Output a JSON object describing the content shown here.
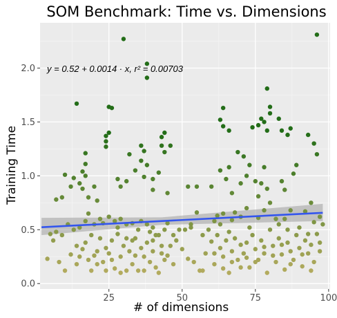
{
  "chart_data": {
    "type": "scatter",
    "title": "SOM Benchmark: Time vs. Dimensions",
    "xlabel": "# of dimensions",
    "ylabel": "Training Time",
    "xlim": [
      1.5,
      100.5
    ],
    "ylim": [
      -0.05,
      2.42
    ],
    "x_ticks": [
      25,
      50,
      75,
      100
    ],
    "y_ticks": [
      0.0,
      0.5,
      1.0,
      1.5,
      2.0
    ],
    "x_tick_labels": [
      "25",
      "50",
      "75",
      "100"
    ],
    "y_tick_labels": [
      "0.0",
      "0.5",
      "1.0",
      "1.5",
      "2.0"
    ],
    "grid": true,
    "legend": "none",
    "annotation": "y = 0.52 + 0.0014 · x,  r² = 0.00703",
    "regression": {
      "intercept": 0.52,
      "slope": 0.0014,
      "r_squared": 0.00703,
      "x_range": [
        2,
        98
      ],
      "ci_lower_start": 0.45,
      "ci_upper_start": 0.61,
      "ci_lower_end": 0.58,
      "ci_upper_end": 0.74,
      "ci_mid": 43
    },
    "colors": {
      "panel": "#ebebeb",
      "grid_major": "#ffffff",
      "point_low": "#b3ab5e",
      "point_high": "#236d18",
      "line": "#3355ee",
      "band": "#9e9e9e"
    },
    "points": [
      [
        96,
        2.31
      ],
      [
        30,
        2.27
      ],
      [
        38,
        2.04
      ],
      [
        38,
        1.91
      ],
      [
        14,
        1.67
      ],
      [
        25,
        1.64
      ],
      [
        26,
        1.63
      ],
      [
        64,
        1.63
      ],
      [
        79,
        1.81
      ],
      [
        80,
        1.64
      ],
      [
        80,
        1.58
      ],
      [
        77,
        1.53
      ],
      [
        78,
        1.5
      ],
      [
        76,
        1.47
      ],
      [
        74,
        1.45
      ],
      [
        83,
        1.53
      ],
      [
        84,
        1.42
      ],
      [
        79,
        1.42
      ],
      [
        63,
        1.52
      ],
      [
        64,
        1.46
      ],
      [
        66,
        1.42
      ],
      [
        87,
        1.44
      ],
      [
        86,
        1.38
      ],
      [
        95,
        1.3
      ],
      [
        93,
        1.38
      ],
      [
        44,
        1.4
      ],
      [
        43,
        1.36
      ],
      [
        46,
        1.28
      ],
      [
        43,
        1.28
      ],
      [
        44,
        1.22
      ],
      [
        24,
        1.37
      ],
      [
        24,
        1.32
      ],
      [
        25,
        1.4
      ],
      [
        24,
        1.27
      ],
      [
        36,
        1.28
      ],
      [
        37,
        1.23
      ],
      [
        36,
        1.14
      ],
      [
        38,
        1.1
      ],
      [
        32,
        1.2
      ],
      [
        17,
        1.21
      ],
      [
        17,
        1.11
      ],
      [
        16,
        1.04
      ],
      [
        17,
        1.0
      ],
      [
        15,
        0.93
      ],
      [
        16,
        0.88
      ],
      [
        13,
        0.98
      ],
      [
        10,
        1.01
      ],
      [
        9,
        0.8
      ],
      [
        7,
        0.78
      ],
      [
        12,
        0.9
      ],
      [
        18,
        0.8
      ],
      [
        20,
        0.9
      ],
      [
        21,
        0.77
      ],
      [
        28,
        0.97
      ],
      [
        29,
        0.9
      ],
      [
        31,
        0.95
      ],
      [
        34,
        1.05
      ],
      [
        37,
        0.99
      ],
      [
        40,
        0.97
      ],
      [
        42,
        1.03
      ],
      [
        40,
        0.87
      ],
      [
        45,
        0.84
      ],
      [
        52,
        0.9
      ],
      [
        55,
        0.9
      ],
      [
        60,
        0.9
      ],
      [
        63,
        1.05
      ],
      [
        66,
        1.08
      ],
      [
        65,
        0.97
      ],
      [
        67,
        0.84
      ],
      [
        72,
        1.0
      ],
      [
        75,
        0.95
      ],
      [
        77,
        0.93
      ],
      [
        78,
        1.08
      ],
      [
        69,
        1.22
      ],
      [
        71,
        1.18
      ],
      [
        73,
        1.1
      ],
      [
        70,
        0.93
      ],
      [
        76,
        0.81
      ],
      [
        79,
        0.88
      ],
      [
        84,
        0.95
      ],
      [
        85,
        0.87
      ],
      [
        88,
        1.02
      ],
      [
        89,
        1.1
      ],
      [
        96,
        1.2
      ],
      [
        97,
        0.62
      ],
      [
        98,
        0.55
      ],
      [
        94,
        0.75
      ],
      [
        92,
        0.67
      ],
      [
        87,
        0.68
      ],
      [
        85,
        0.6
      ],
      [
        82,
        0.6
      ],
      [
        80,
        0.75
      ],
      [
        78,
        0.68
      ],
      [
        76,
        0.61
      ],
      [
        72,
        0.7
      ],
      [
        70,
        0.62
      ],
      [
        68,
        0.66
      ],
      [
        67,
        0.59
      ],
      [
        64,
        0.65
      ],
      [
        62,
        0.63
      ],
      [
        61,
        0.58
      ],
      [
        59,
        0.5
      ],
      [
        57,
        0.45
      ],
      [
        55,
        0.66
      ],
      [
        53,
        0.55
      ],
      [
        51,
        0.5
      ],
      [
        49,
        0.5
      ],
      [
        47,
        0.45
      ],
      [
        45,
        0.56
      ],
      [
        44,
        0.5
      ],
      [
        42,
        0.45
      ],
      [
        40,
        0.52
      ],
      [
        38,
        0.55
      ],
      [
        36,
        0.58
      ],
      [
        35,
        0.5
      ],
      [
        33,
        0.56
      ],
      [
        31,
        0.55
      ],
      [
        29,
        0.6
      ],
      [
        28,
        0.52
      ],
      [
        27,
        0.58
      ],
      [
        25,
        0.62
      ],
      [
        23,
        0.56
      ],
      [
        22,
        0.6
      ],
      [
        20,
        0.55
      ],
      [
        18,
        0.65
      ],
      [
        17,
        0.58
      ],
      [
        15,
        0.52
      ],
      [
        13,
        0.5
      ],
      [
        11,
        0.55
      ],
      [
        9,
        0.45
      ],
      [
        7,
        0.48
      ],
      [
        5,
        0.46
      ],
      [
        4,
        0.23
      ],
      [
        6,
        0.4
      ],
      [
        8,
        0.2
      ],
      [
        10,
        0.12
      ],
      [
        12,
        0.27
      ],
      [
        14,
        0.18
      ],
      [
        16,
        0.32
      ],
      [
        18,
        0.22
      ],
      [
        19,
        0.12
      ],
      [
        21,
        0.3
      ],
      [
        23,
        0.2
      ],
      [
        24,
        0.33
      ],
      [
        26,
        0.4
      ],
      [
        27,
        0.14
      ],
      [
        29,
        0.25
      ],
      [
        30,
        0.35
      ],
      [
        32,
        0.3
      ],
      [
        33,
        0.18
      ],
      [
        34,
        0.42
      ],
      [
        35,
        0.12
      ],
      [
        37,
        0.25
      ],
      [
        38,
        0.38
      ],
      [
        39,
        0.2
      ],
      [
        40,
        0.3
      ],
      [
        41,
        0.45
      ],
      [
        42,
        0.1
      ],
      [
        43,
        0.28
      ],
      [
        44,
        0.22
      ],
      [
        46,
        0.35
      ],
      [
        48,
        0.4
      ],
      [
        50,
        0.32
      ],
      [
        52,
        0.23
      ],
      [
        54,
        0.2
      ],
      [
        56,
        0.12
      ],
      [
        58,
        0.28
      ],
      [
        60,
        0.39
      ],
      [
        61,
        0.18
      ],
      [
        62,
        0.45
      ],
      [
        63,
        0.33
      ],
      [
        64,
        0.25
      ],
      [
        65,
        0.4
      ],
      [
        66,
        0.1
      ],
      [
        67,
        0.3
      ],
      [
        68,
        0.42
      ],
      [
        69,
        0.22
      ],
      [
        71,
        0.28
      ],
      [
        72,
        0.38
      ],
      [
        73,
        0.15
      ],
      [
        74,
        0.45
      ],
      [
        75,
        0.32
      ],
      [
        76,
        0.22
      ],
      [
        77,
        0.4
      ],
      [
        78,
        0.28
      ],
      [
        79,
        0.1
      ],
      [
        81,
        0.35
      ],
      [
        82,
        0.2
      ],
      [
        83,
        0.42
      ],
      [
        84,
        0.27
      ],
      [
        85,
        0.13
      ],
      [
        86,
        0.38
      ],
      [
        87,
        0.3
      ],
      [
        88,
        0.22
      ],
      [
        89,
        0.45
      ],
      [
        90,
        0.33
      ],
      [
        91,
        0.16
      ],
      [
        92,
        0.4
      ],
      [
        93,
        0.28
      ],
      [
        94,
        0.36
      ],
      [
        95,
        0.2
      ],
      [
        96,
        0.46
      ],
      [
        97,
        0.3
      ],
      [
        14,
        0.35
      ],
      [
        20,
        0.26
      ],
      [
        22,
        0.42
      ],
      [
        25,
        0.28
      ],
      [
        28,
        0.46
      ],
      [
        31,
        0.12
      ],
      [
        33,
        0.4
      ],
      [
        36,
        0.33
      ],
      [
        39,
        0.48
      ],
      [
        41,
        0.15
      ],
      [
        45,
        0.26
      ],
      [
        53,
        0.52
      ],
      [
        57,
        0.12
      ],
      [
        63,
        0.55
      ],
      [
        66,
        0.48
      ],
      [
        70,
        0.36
      ],
      [
        73,
        0.52
      ],
      [
        80,
        0.5
      ],
      [
        83,
        0.55
      ],
      [
        86,
        0.5
      ],
      [
        90,
        0.52
      ],
      [
        93,
        0.46
      ],
      [
        95,
        0.57
      ],
      [
        15,
        0.25
      ],
      [
        17,
        0.38
      ],
      [
        19,
        0.45
      ],
      [
        21,
        0.18
      ],
      [
        24,
        0.12
      ],
      [
        26,
        0.22
      ],
      [
        29,
        0.1
      ],
      [
        31,
        0.42
      ],
      [
        34,
        0.26
      ],
      [
        37,
        0.12
      ],
      [
        40,
        0.4
      ],
      [
        43,
        0.35
      ],
      [
        47,
        0.18
      ],
      [
        61,
        0.28
      ],
      [
        64,
        0.14
      ],
      [
        67,
        0.2
      ],
      [
        70,
        0.15
      ],
      [
        72,
        0.24
      ],
      [
        75,
        0.2
      ],
      [
        78,
        0.34
      ],
      [
        81,
        0.26
      ],
      [
        84,
        0.36
      ],
      [
        87,
        0.18
      ],
      [
        91,
        0.27
      ],
      [
        94,
        0.12
      ],
      [
        97,
        0.38
      ]
    ]
  }
}
